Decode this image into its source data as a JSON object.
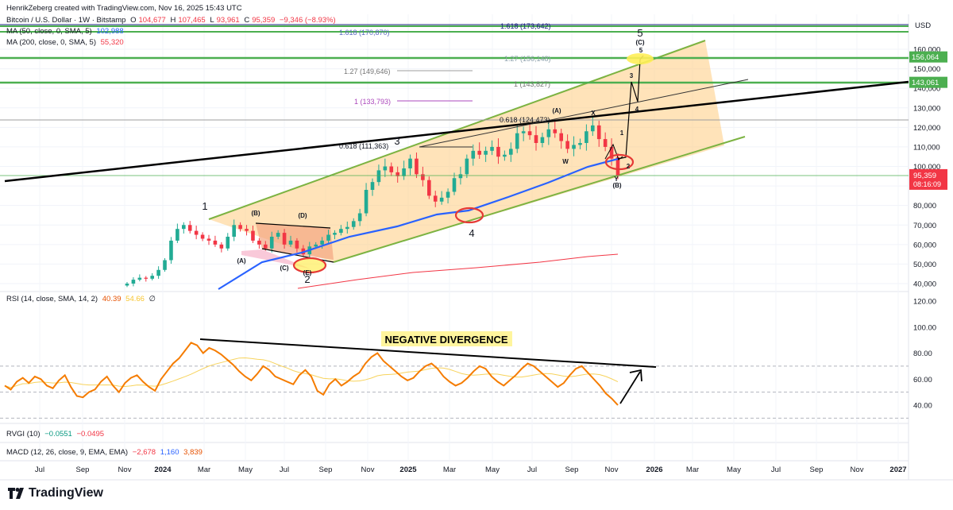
{
  "header": {
    "credit": "HenrikZeberg created with TradingView.com, Nov 16, 2025 15:43 UTC"
  },
  "legend": {
    "symbol": "Bitcoin / U.S. Dollar · 1W · Bitstamp",
    "o_label": "O",
    "o_value": "104,677",
    "h_label": "H",
    "h_value": "107,465",
    "l_label": "L",
    "l_value": "93,961",
    "c_label": "C",
    "c_value": "95,359",
    "change": "−9,346 (−8.93%)",
    "ma50_label": "MA (50, close, 0, SMA, 5)",
    "ma50_value": "102,988",
    "ma200_label": "MA (200, close, 0, SMA, 5)",
    "ma200_value": "55,320"
  },
  "rsi_legend": {
    "label": "RSI (14, close, SMA, 14, 2)",
    "value": "40.39",
    "sma": "54.66",
    "extra": "∅"
  },
  "rvgi_legend": {
    "label": "RVGI (10)",
    "v1": "−0.0551",
    "v2": "−0.0495"
  },
  "macd_legend": {
    "label": "MACD (12, 26, close, 9, EMA, EMA)",
    "v1": "−2,678",
    "v2": "1,160",
    "v3": "3,839"
  },
  "brand": {
    "name": "TradingView"
  },
  "colors": {
    "up": "#22ab94",
    "down": "#f23645",
    "ma50": "#2962ff",
    "ma200": "#f23645",
    "channel": "#ffa726",
    "green_line": "#4caf50",
    "rsi": "#f57c00",
    "rsi_sma": "#f7d35c"
  },
  "chart_data": [
    {
      "type": "candlestick",
      "title": "Bitcoin / U.S. Dollar · 1W · Bitstamp",
      "price_axis": {
        "currency": "USD",
        "ticks": [
          40000,
          50000,
          60000,
          70000,
          80000,
          90000,
          100000,
          110000,
          120000,
          130000,
          140000,
          150000,
          160000
        ],
        "tick_labels": [
          "40,000",
          "50,000",
          "60,000",
          "70,000",
          "80,000",
          "90,000",
          "100,000",
          "110,000",
          "120,000",
          "130,000",
          "140,000",
          "150,000",
          "160,000"
        ]
      },
      "time_axis": {
        "labels": [
          "Jul",
          "Sep",
          "Nov",
          "2024",
          "Mar",
          "May",
          "Jul",
          "Sep",
          "Nov",
          "2025",
          "Mar",
          "May",
          "Jul",
          "Sep",
          "Nov",
          "2026",
          "Mar",
          "May",
          "Jul",
          "Sep",
          "Nov",
          "2027"
        ]
      },
      "price_badges": [
        {
          "text": "USD"
        },
        {
          "value": 156064,
          "text": "156,064"
        },
        {
          "value": 143061,
          "text": "143,061"
        },
        {
          "value": 95359,
          "text": "95,359",
          "sub": "08:16:09"
        }
      ],
      "closes": [
        40000,
        42000,
        43000,
        42500,
        44000,
        47000,
        52000,
        62000,
        68000,
        70000,
        67000,
        65000,
        63000,
        62000,
        60000,
        58000,
        64000,
        70000,
        68000,
        67000,
        62000,
        60000,
        58000,
        64000,
        66000,
        60000,
        62000,
        58000,
        55000,
        59000,
        60000,
        62000,
        65000,
        66000,
        68000,
        69000,
        72000,
        76000,
        88000,
        92000,
        98000,
        100000,
        97000,
        95000,
        99000,
        104000,
        96000,
        93000,
        85000,
        82000,
        84000,
        87000,
        94000,
        96000,
        104000,
        108000,
        106000,
        108000,
        110000,
        105000,
        106000,
        109000,
        117000,
        118000,
        116000,
        112000,
        115000,
        119000,
        117000,
        113000,
        109000,
        111000,
        112000,
        118000,
        121000,
        114000,
        110000,
        104000,
        95359
      ],
      "moving_averages": [
        {
          "name": "MA 50",
          "color": "#2962ff",
          "last": 102988
        },
        {
          "name": "MA 200",
          "color": "#f23645",
          "last": 55320
        }
      ],
      "levels": [
        {
          "text": "1.618 (170,870)",
          "value": 170870
        },
        {
          "text": "1.618 (173,642)",
          "value": 173642
        },
        {
          "text": "1.27 (156,148)",
          "value": 156148
        },
        {
          "text": "1.27 (149,646)",
          "value": 149646
        },
        {
          "text": "1 (143,827)",
          "value": 143827
        },
        {
          "text": "1 (133,793)",
          "value": 133793
        },
        {
          "text": "0.618 (124,473)",
          "value": 124473
        },
        {
          "text": "0.618 (111,363)",
          "value": 111363
        }
      ],
      "wave_labels": [
        "1",
        "2",
        "3",
        "4",
        "5",
        "(A)",
        "(B)",
        "(C)",
        "(D)",
        "(E)",
        "(A)",
        "(B)",
        "(C)",
        "X",
        "W",
        "Y",
        "1",
        "2",
        "3",
        "4",
        "5"
      ]
    },
    {
      "type": "line",
      "title": "RSI (14, close, SMA, 14, 2)",
      "annotation": "NEGATIVE DIVERGENCE",
      "y_ticks": [
        40,
        60,
        80,
        100,
        120
      ],
      "y_tick_labels": [
        "40.00",
        "60.00",
        "80.00",
        "100.00",
        "120.00"
      ],
      "guides": [
        70,
        50,
        30
      ],
      "values": [
        55,
        52,
        58,
        61,
        57,
        62,
        60,
        55,
        53,
        59,
        63,
        54,
        47,
        46,
        50,
        52,
        58,
        62,
        55,
        50,
        57,
        61,
        63,
        58,
        54,
        51,
        60,
        66,
        72,
        76,
        82,
        88,
        86,
        80,
        84,
        82,
        79,
        75,
        71,
        66,
        62,
        59,
        64,
        70,
        67,
        62,
        60,
        58,
        56,
        63,
        67,
        62,
        51,
        48,
        56,
        60,
        55,
        58,
        62,
        65,
        72,
        77,
        80,
        74,
        70,
        66,
        62,
        59,
        61,
        66,
        70,
        72,
        68,
        62,
        58,
        55,
        57,
        61,
        66,
        70,
        68,
        62,
        58,
        55,
        59,
        63,
        68,
        72,
        70,
        66,
        62,
        58,
        54,
        57,
        63,
        68,
        70,
        65,
        60,
        55,
        49,
        45,
        40
      ],
      "last": 40.39,
      "sma_last": 54.66
    }
  ]
}
